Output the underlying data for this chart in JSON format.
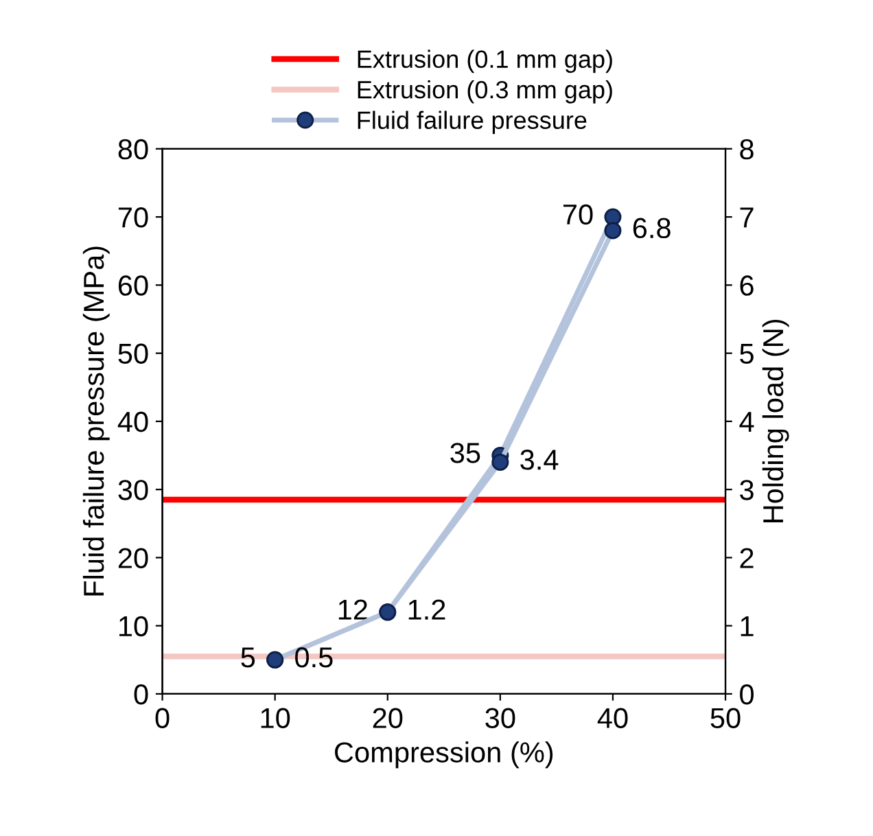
{
  "chart_data": {
    "type": "line",
    "xlabel": "Compression (%)",
    "ylabel": "Fluid failure pressure (MPa)",
    "y2label": "Holding load (N)",
    "x": [
      10,
      20,
      30,
      40
    ],
    "series": [
      {
        "name": "Fluid failure pressure",
        "color": "#b4c3dc",
        "values": [
          5,
          12,
          35,
          70
        ],
        "value_labels": [
          "5",
          "12",
          "35",
          "70"
        ]
      },
      {
        "axis": "y2",
        "color": "#b4c3dc",
        "values": [
          0.5,
          1.2,
          3.4,
          6.8
        ],
        "value_labels": [
          "0.5",
          "1.2",
          "3.4",
          "6.8"
        ]
      }
    ],
    "ref_lines": [
      {
        "axis": "y",
        "value": 28.5,
        "label": "Extrusion (0.1 mm gap)",
        "color": "#ff0000",
        "line_style": "solid"
      },
      {
        "axis": "y",
        "value": 5.5,
        "label": "Extrusion (0.3 mm gap)",
        "color": "#f4c7c3",
        "line_style": "solid"
      }
    ],
    "xlim": [
      0,
      50
    ],
    "xticks": [
      0,
      10,
      20,
      30,
      40,
      50
    ],
    "ylim": [
      0,
      80
    ],
    "yticks": [
      0,
      10,
      20,
      30,
      40,
      50,
      60,
      70,
      80
    ],
    "y2lim": [
      0,
      8
    ],
    "y2ticks": [
      0,
      1,
      2,
      3,
      4,
      5,
      6,
      7,
      8
    ],
    "marker": "circle",
    "line_style": "solid",
    "grid": false,
    "legend": "top"
  }
}
